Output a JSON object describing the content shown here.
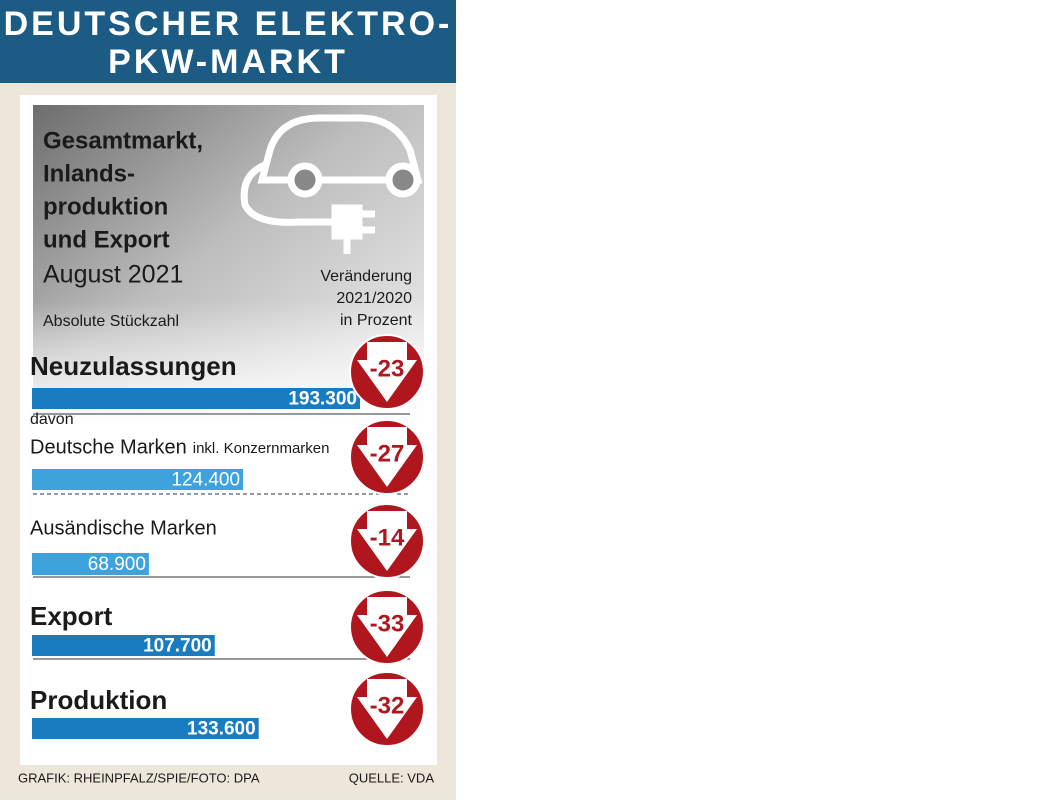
{
  "chart_data": {
    "type": "bar",
    "title_lines": [
      "DEUTSCHER ELEKTRO-",
      "PKW-MARKT"
    ],
    "subtitle_lines": [
      "Gesamtmarkt,",
      "Inlands-",
      "produktion",
      "und Export"
    ],
    "period": "August 2021",
    "unit_label": "Absolute Stückzahl",
    "categories": [
      "Neuzulassungen",
      "Deutsche Marken",
      "Ausändische Marken",
      "Export",
      "Produktion"
    ],
    "annotations": [
      "davon",
      "inkl. Konzernmarken"
    ],
    "values": [
      193300,
      124400,
      68900,
      107700,
      133600
    ],
    "value_labels": [
      "193.300",
      "124.400",
      "68.900",
      "107.700",
      "133.600"
    ],
    "emphasis": [
      true,
      false,
      false,
      true,
      true
    ],
    "colors": {
      "main": "#1a7cc0",
      "sub": "#3ea3dd",
      "change": "#b0161d"
    },
    "change": {
      "label_lines": [
        "Veränderung",
        "2021/2020",
        "in Prozent"
      ],
      "values": [
        -23,
        -27,
        -14,
        -33,
        -32
      ]
    },
    "footer": {
      "credit": "GRAFIK: RHEINPFALZ/SPIE/FOTO: DPA",
      "source": "QUELLE: VDA"
    }
  }
}
